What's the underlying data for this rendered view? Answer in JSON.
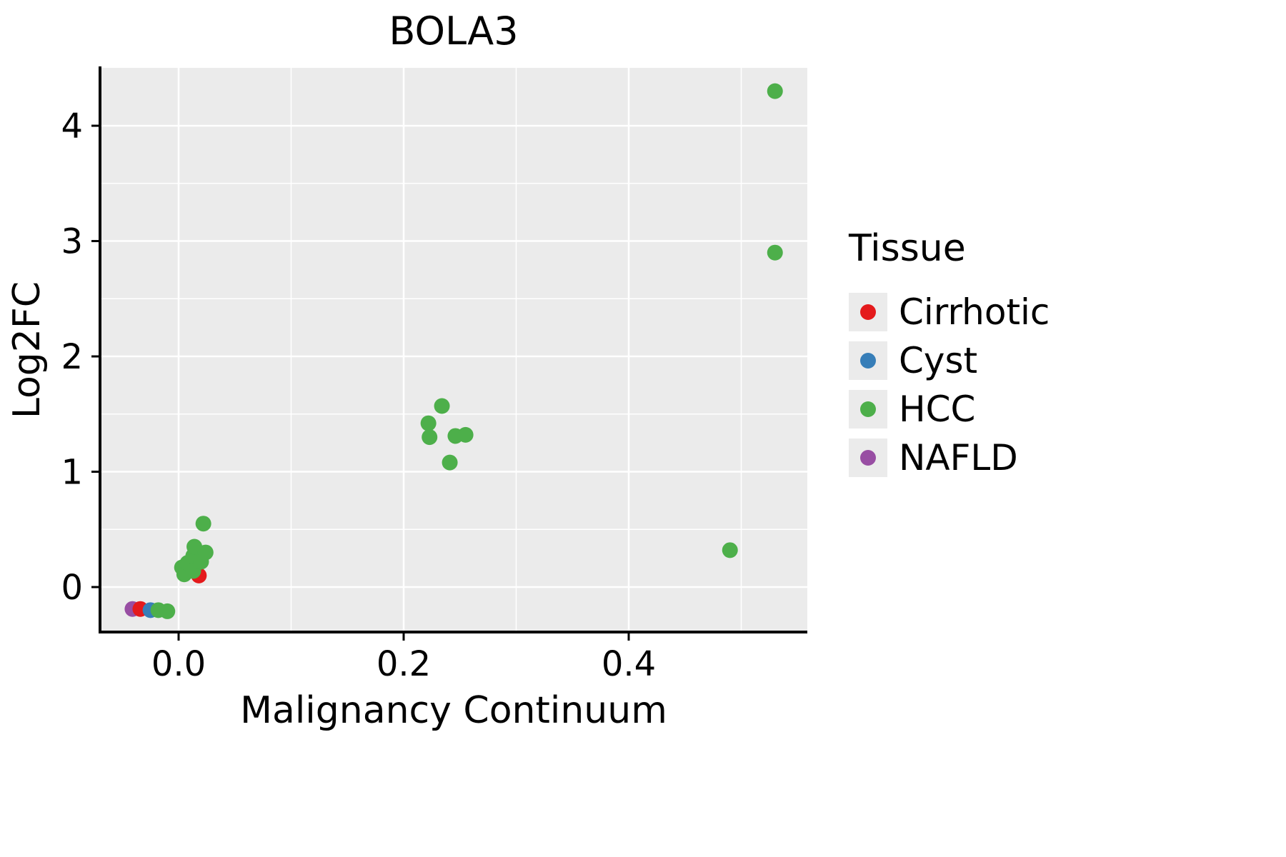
{
  "title": "BOLA3",
  "style": {
    "panel_bg": "#EBEBEB",
    "grid_color": "#FFFFFF",
    "axis_color": "#000000",
    "legend_key_bg": "#EBEBEB",
    "point_radius": 11
  },
  "chart_data": {
    "type": "scatter",
    "title": "BOLA3",
    "xlabel": "Malignancy Continuum",
    "ylabel": "Log2FC",
    "xlim": [
      -0.06984,
      0.55873
    ],
    "ylim": [
      -0.39,
      4.502
    ],
    "xticks": {
      "values": [
        0.0,
        0.2,
        0.4
      ],
      "labels": [
        "0.0",
        "0.2",
        "0.4"
      ]
    },
    "yticks": {
      "values": [
        0,
        1,
        2,
        3,
        4
      ],
      "labels": [
        "0",
        "1",
        "2",
        "3",
        "4"
      ]
    },
    "x_minor": [
      0.1,
      0.3,
      0.5
    ],
    "y_minor": [
      0.5,
      1.5,
      2.5,
      3.5
    ],
    "grid": true,
    "legend_title": "Tissue",
    "legend_position": "right",
    "legend_order": [
      "Cirrhotic",
      "Cyst",
      "HCC",
      "NAFLD"
    ],
    "series": [
      {
        "name": "NAFLD",
        "color": "#984EA3",
        "points": [
          [
            -0.041,
            -0.19
          ]
        ]
      },
      {
        "name": "Cirrhotic",
        "color": "#E41A1C",
        "points": [
          [
            -0.034,
            -0.19
          ],
          [
            0.018,
            0.1
          ]
        ]
      },
      {
        "name": "Cyst",
        "color": "#377EB8",
        "points": [
          [
            -0.025,
            -0.2
          ]
        ]
      },
      {
        "name": "HCC",
        "color": "#4DAF4A",
        "points": [
          [
            -0.018,
            -0.2
          ],
          [
            -0.01,
            -0.21
          ],
          [
            0.003,
            0.17
          ],
          [
            0.005,
            0.11
          ],
          [
            0.008,
            0.21
          ],
          [
            0.013,
            0.27
          ],
          [
            0.013,
            0.14
          ],
          [
            0.014,
            0.35
          ],
          [
            0.02,
            0.22
          ],
          [
            0.022,
            0.55
          ],
          [
            0.024,
            0.3
          ],
          [
            0.222,
            1.42
          ],
          [
            0.223,
            1.3
          ],
          [
            0.234,
            1.57
          ],
          [
            0.241,
            1.08
          ],
          [
            0.246,
            1.31
          ],
          [
            0.255,
            1.32
          ],
          [
            0.49,
            0.32
          ],
          [
            0.53,
            2.9
          ],
          [
            0.53,
            4.3
          ]
        ]
      }
    ]
  }
}
